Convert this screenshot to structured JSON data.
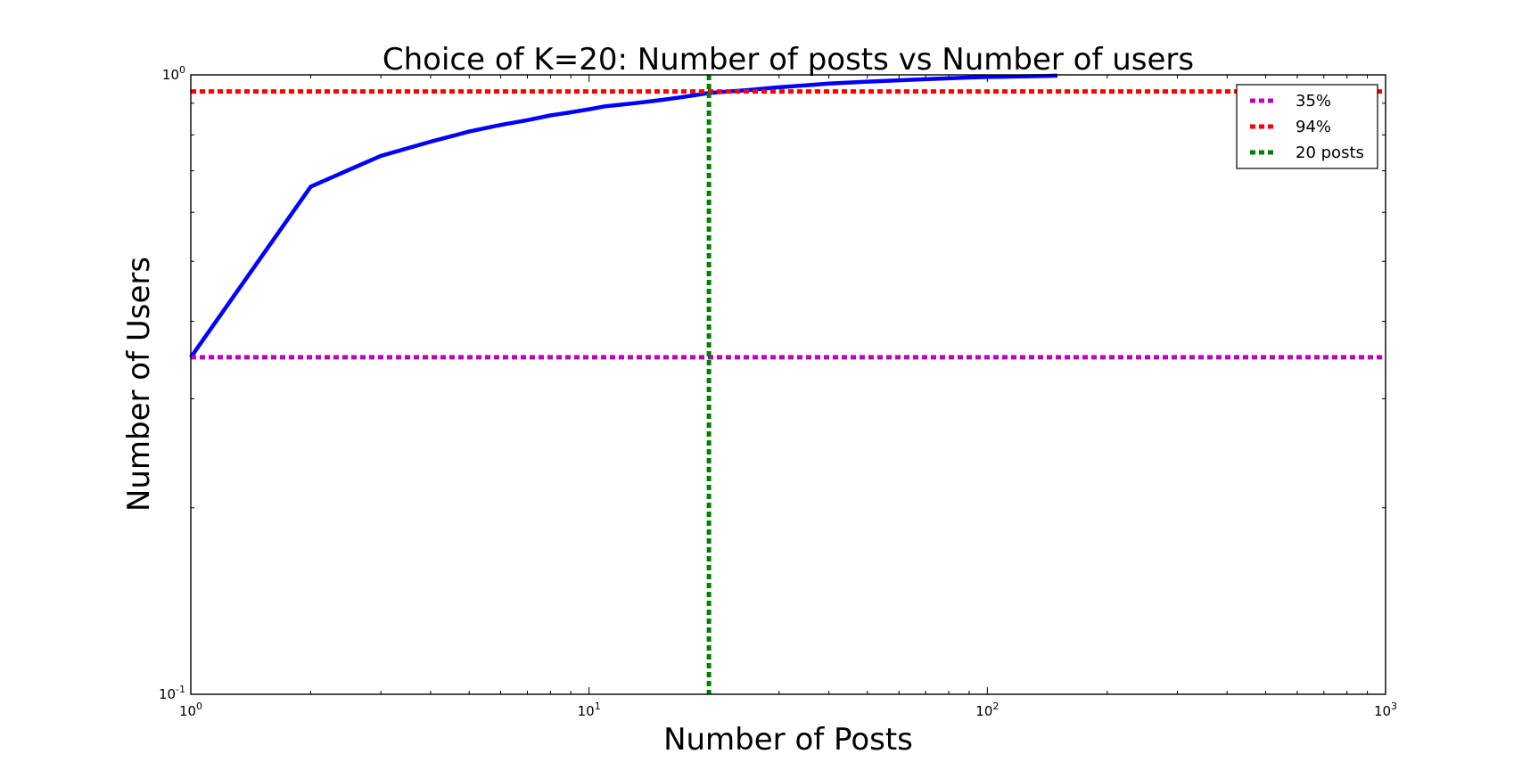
{
  "chart_data": {
    "type": "line",
    "title": "Choice of K=20: Number of posts vs Number of users",
    "xlabel": "Number of Posts",
    "ylabel": "Number of Users",
    "xscale": "log",
    "yscale": "log",
    "xlim": [
      1,
      1000
    ],
    "ylim": [
      0.1,
      1
    ],
    "x_ticks": [
      {
        "base": "10",
        "exp": "0",
        "value": 1
      },
      {
        "base": "10",
        "exp": "1",
        "value": 10
      },
      {
        "base": "10",
        "exp": "2",
        "value": 100
      },
      {
        "base": "10",
        "exp": "3",
        "value": 1000
      }
    ],
    "y_ticks": [
      {
        "base": "10",
        "exp": "-1",
        "value": 0.1
      },
      {
        "base": "10",
        "exp": "0",
        "value": 1
      }
    ],
    "grid": false,
    "legend_position": "top-right",
    "series": [
      {
        "type": "line",
        "color": "#0000ff",
        "x": [
          1,
          2,
          3,
          4,
          5,
          6,
          7,
          8,
          9,
          10,
          11,
          12,
          13,
          14,
          15,
          16,
          17,
          18,
          19,
          20,
          25,
          30,
          35,
          40,
          45,
          50,
          60,
          70,
          80,
          90,
          100,
          110,
          120,
          130,
          140,
          150
        ],
        "y": [
          0.35,
          0.66,
          0.74,
          0.78,
          0.81,
          0.83,
          0.845,
          0.86,
          0.87,
          0.88,
          0.89,
          0.895,
          0.9,
          0.905,
          0.91,
          0.915,
          0.92,
          0.925,
          0.93,
          0.935,
          0.945,
          0.955,
          0.962,
          0.968,
          0.972,
          0.975,
          0.98,
          0.984,
          0.987,
          0.99,
          0.992,
          0.993,
          0.994,
          0.995,
          0.996,
          0.997
        ]
      }
    ],
    "reference_lines": [
      {
        "name": "35%",
        "orientation": "horizontal",
        "value": 0.35,
        "color": "#bf00bf"
      },
      {
        "name": "94%",
        "orientation": "horizontal",
        "value": 0.94,
        "color": "#ff0000"
      },
      {
        "name": "20 posts",
        "orientation": "vertical",
        "value": 20,
        "color": "#008000"
      }
    ]
  }
}
